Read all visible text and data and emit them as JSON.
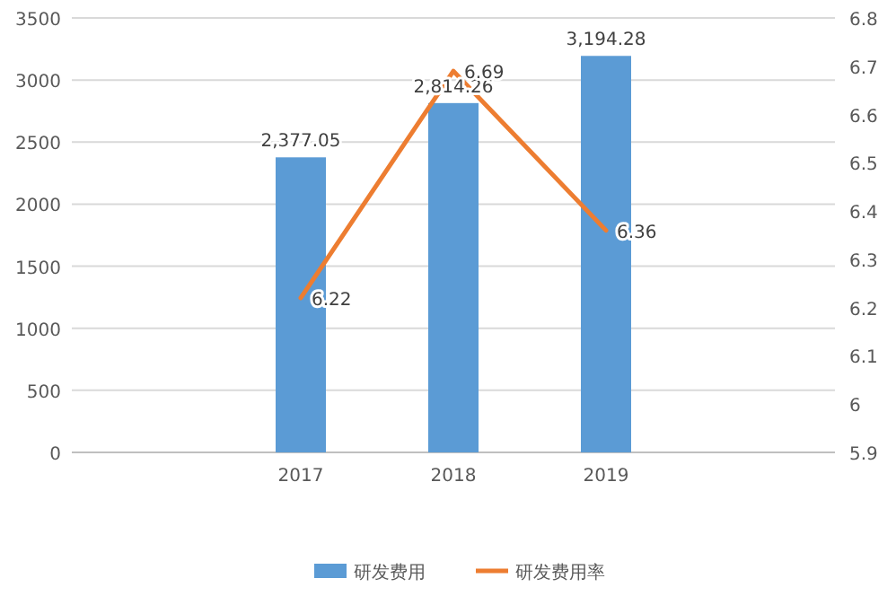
{
  "chart_data": {
    "type": "bar",
    "categories": [
      null,
      "2017",
      "2018",
      "2019",
      null
    ],
    "series": [
      {
        "name": "研发费用",
        "color": "#5b9bd5",
        "values": [
          null,
          2377.05,
          2814.26,
          3194.28,
          null
        ],
        "value_labels": [
          null,
          "2,377.05",
          "2,814.26",
          "3,194.28",
          null
        ]
      },
      {
        "name": "研发费用率",
        "type": "line",
        "axis": "y2",
        "color": "#ed7d31",
        "values": [
          null,
          6.22,
          6.69,
          6.36,
          null
        ],
        "value_labels": [
          null,
          "6.22",
          "6.69",
          "6.36",
          null
        ]
      }
    ],
    "ylim": [
      0,
      3500
    ],
    "yticks": [
      0,
      500,
      1000,
      1500,
      2000,
      2500,
      3000,
      3500
    ],
    "y2lim": [
      5.9,
      6.8
    ],
    "y2ticks": [
      {
        "value": 5.9,
        "label": "5.9"
      },
      {
        "value": 6.0,
        "label": "6"
      },
      {
        "value": 6.1,
        "label": "6.1"
      },
      {
        "value": 6.2,
        "label": "6.2"
      },
      {
        "value": 6.3,
        "label": "6.3"
      },
      {
        "value": 6.4,
        "label": "6.4"
      },
      {
        "value": 6.5,
        "label": "6.5"
      },
      {
        "value": 6.6,
        "label": "6.6"
      },
      {
        "value": 6.7,
        "label": "6.7"
      },
      {
        "value": 6.8,
        "label": "6.8"
      }
    ],
    "grid": "y",
    "legend": "bottom",
    "marker": "none",
    "line_style": "solid"
  }
}
